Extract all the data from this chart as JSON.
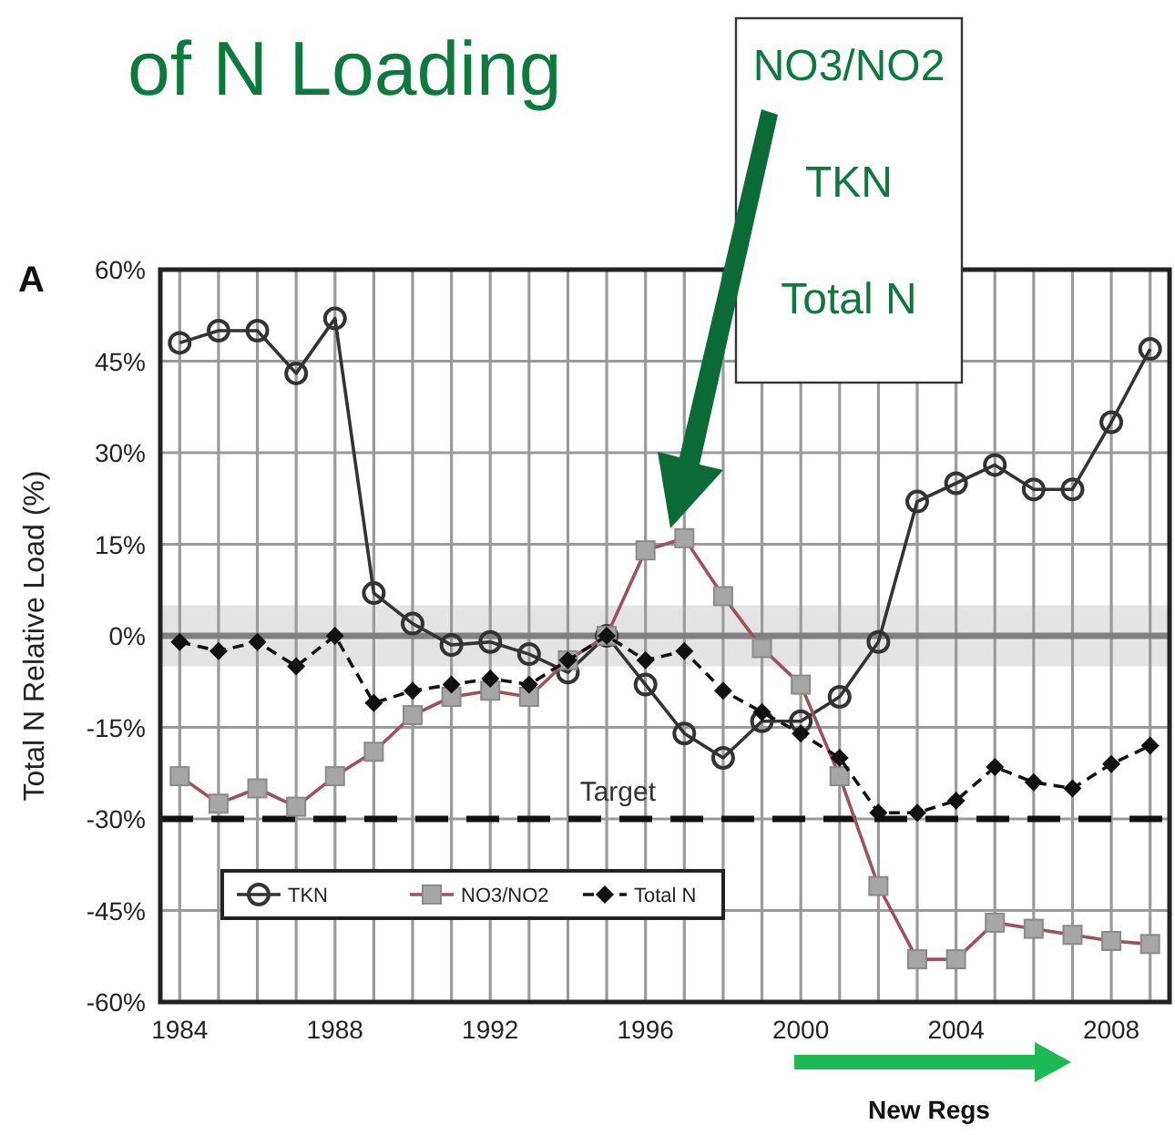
{
  "chart_data": {
    "type": "line",
    "title": "of N Loading",
    "ylabel": "Total N Relative Load (%)",
    "x": [
      1984,
      1985,
      1986,
      1987,
      1988,
      1989,
      1990,
      1991,
      1992,
      1993,
      1994,
      1995,
      1996,
      1997,
      1998,
      1999,
      2000,
      2001,
      2002,
      2003,
      2004,
      2005,
      2006,
      2007,
      2008,
      2009
    ],
    "series": [
      {
        "name": "TKN",
        "color": "#333333",
        "marker": "circle",
        "line_style": "solid",
        "values": [
          48,
          50,
          50,
          43,
          52,
          7,
          2,
          -1.5,
          -1,
          -3,
          -6,
          0,
          -8,
          -16,
          -20,
          -14,
          -14,
          -10,
          -1,
          22,
          25,
          28,
          24,
          24,
          35,
          47
        ]
      },
      {
        "name": "NO3/NO2",
        "color": "#a0505a",
        "marker": "square",
        "line_style": "solid",
        "values": [
          -23,
          -27.5,
          -25,
          -28,
          -23,
          -19,
          -13,
          -10,
          -9,
          -10,
          -4,
          0,
          14,
          16,
          6.5,
          -2,
          -8,
          -23,
          -41,
          -53,
          -53,
          -47,
          -48,
          -49,
          -50,
          -50.5
        ]
      },
      {
        "name": "Total N",
        "color": "#111111",
        "marker": "diamond",
        "line_style": "dashed",
        "values": [
          -1,
          -2.5,
          -1,
          -5,
          0,
          -11,
          -9,
          -8,
          -7,
          -8,
          -4,
          0,
          -4,
          -2.5,
          -9,
          -12.5,
          -16,
          -20,
          -29,
          -29,
          -27,
          -21.5,
          -24,
          -25,
          -21,
          -18
        ]
      }
    ],
    "xlim": [
      1983.5,
      2009.5
    ],
    "xticks": [
      1984,
      {
        "value": 1985,
        "label": null
      },
      {
        "value": 1986,
        "label": null
      },
      {
        "value": 1987,
        "label": null
      },
      1988,
      {
        "value": 1989,
        "label": null
      },
      {
        "value": 1990,
        "label": null
      },
      {
        "value": 1991,
        "label": null
      },
      1992,
      {
        "value": 1993,
        "label": null
      },
      {
        "value": 1994,
        "label": null
      },
      {
        "value": 1995,
        "label": null
      },
      1996,
      {
        "value": 1997,
        "label": null
      },
      {
        "value": 1998,
        "label": null
      },
      {
        "value": 1999,
        "label": null
      },
      2000,
      {
        "value": 2001,
        "label": null
      },
      {
        "value": 2002,
        "label": null
      },
      {
        "value": 2003,
        "label": null
      },
      2004,
      {
        "value": 2005,
        "label": null
      },
      {
        "value": 2006,
        "label": null
      },
      {
        "value": 2007,
        "label": null
      },
      2008,
      {
        "value": 2009,
        "label": null
      }
    ],
    "ylim": [
      -60,
      60
    ],
    "yticks": [
      {
        "value": 60,
        "label": "60%"
      },
      {
        "value": 45,
        "label": "45%"
      },
      {
        "value": 30,
        "label": "30%"
      },
      {
        "value": 15,
        "label": "15%"
      },
      {
        "value": 0,
        "label": "0%"
      },
      {
        "value": -15,
        "label": "-15%"
      },
      {
        "value": -30,
        "label": "-30%"
      },
      {
        "value": -45,
        "label": "-45%"
      },
      {
        "value": -60,
        "label": "-60%"
      }
    ],
    "grid": true,
    "legend": "bottom left",
    "ref_lines": [
      {
        "axis": "y",
        "value": 0,
        "label": null,
        "color": "#808080",
        "line_style": "solid"
      },
      {
        "axis": "y",
        "value": -30,
        "label": "Target",
        "color": "#111111",
        "line_style": "dashed"
      }
    ],
    "bands": [
      {
        "axis": "y",
        "from": -5,
        "to": 5,
        "label": null,
        "color": "#e4e4e4"
      }
    ],
    "annotations": [
      "A",
      "NO3/NO2",
      "TKN",
      "Total N",
      "New Regs"
    ]
  }
}
